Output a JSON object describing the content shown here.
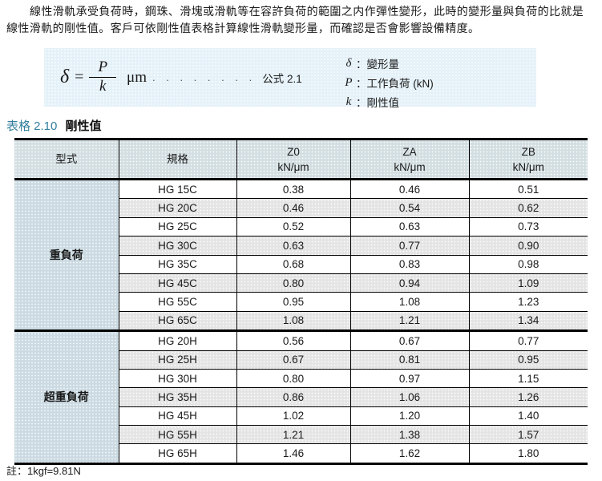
{
  "intro": {
    "text": "線性滑軌承受負荷時，鋼珠、滑塊或滑軌等在容許負荷的範圍之内作彈性變形，此時的變形量與負荷的比就是線性滑軌的剛性值。客戶可依剛性值表格計算線性滑軌變形量，而確認是否會影響設備精度。"
  },
  "formula": {
    "symbol": "δ",
    "equals": "=",
    "numerator": "P",
    "denominator": "k",
    "unit": "μm",
    "dots": ". . . . . . . .",
    "label": "公式 2.1",
    "legend": [
      {
        "symbol": "δ",
        "desc": "：變形量"
      },
      {
        "symbol": "P",
        "desc": "：工作負荷 (kN)"
      },
      {
        "symbol": "k",
        "desc": "：剛性值"
      }
    ]
  },
  "table": {
    "caption_prefix": "表格 2.10",
    "caption_title": "剛性值",
    "columns": [
      {
        "label": "型式",
        "unit": ""
      },
      {
        "label": "規格",
        "unit": ""
      },
      {
        "label": "Z0",
        "unit": "kN/μm"
      },
      {
        "label": "ZA",
        "unit": "kN/μm"
      },
      {
        "label": "ZB",
        "unit": "kN/μm"
      }
    ],
    "groups": [
      {
        "label": "重負荷",
        "rows": [
          [
            "HG 15C",
            "0.38",
            "0.46",
            "0.51"
          ],
          [
            "HG 20C",
            "0.46",
            "0.54",
            "0.62"
          ],
          [
            "HG 25C",
            "0.52",
            "0.63",
            "0.73"
          ],
          [
            "HG 30C",
            "0.63",
            "0.77",
            "0.90"
          ],
          [
            "HG 35C",
            "0.68",
            "0.83",
            "0.98"
          ],
          [
            "HG 45C",
            "0.80",
            "0.94",
            "1.09"
          ],
          [
            "HG 55C",
            "0.95",
            "1.08",
            "1.23"
          ],
          [
            "HG 65C",
            "1.08",
            "1.21",
            "1.34"
          ]
        ]
      },
      {
        "label": "超重負荷",
        "rows": [
          [
            "HG 20H",
            "0.56",
            "0.67",
            "0.77"
          ],
          [
            "HG 25H",
            "0.67",
            "0.81",
            "0.95"
          ],
          [
            "HG 30H",
            "0.80",
            "0.97",
            "1.15"
          ],
          [
            "HG 35H",
            "0.86",
            "1.06",
            "1.26"
          ],
          [
            "HG 45H",
            "1.02",
            "1.20",
            "1.40"
          ],
          [
            "HG 55H",
            "1.21",
            "1.38",
            "1.57"
          ],
          [
            "HG 65H",
            "1.46",
            "1.62",
            "1.80"
          ]
        ]
      }
    ],
    "footnote": "註：1kgf=9.81N"
  },
  "colors": {
    "accent_teal": "#337f9e",
    "formula_box_bg": "#e4f1f8",
    "table_header_bg": "#d3dee2",
    "group_cell_bg": "#cbdae2",
    "stripe_row_bg": "#e4e4e4",
    "border": "#000000"
  }
}
